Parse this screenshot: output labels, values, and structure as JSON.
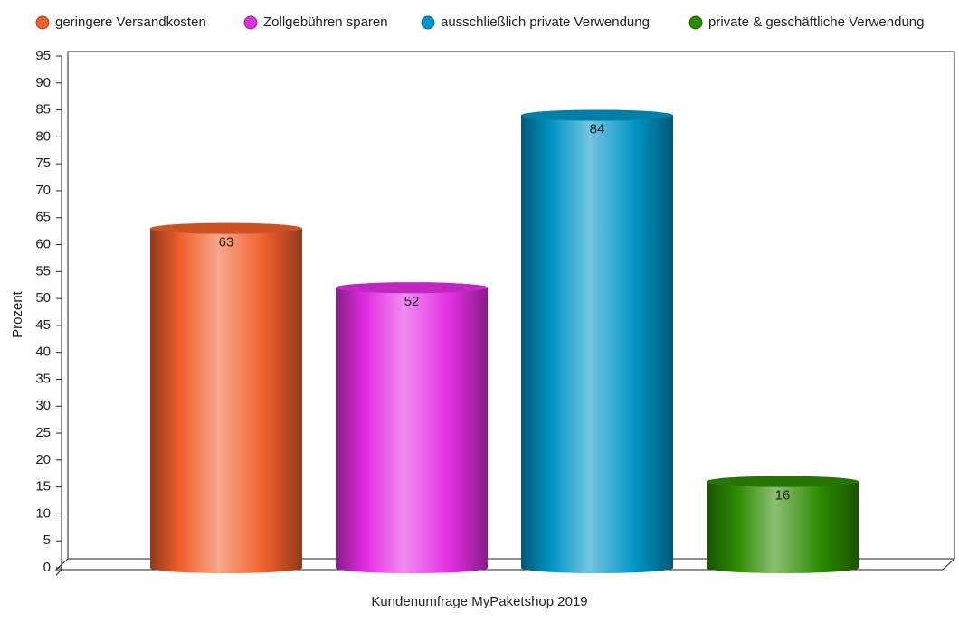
{
  "chart_data": {
    "type": "cylinder-bar",
    "x_label": "Kundenumfrage MyPaketshop 2019",
    "y_label": "Prozent",
    "series": [
      {
        "name": "geringere Versandkosten",
        "color": "#f0602c",
        "values": [
          63
        ]
      },
      {
        "name": "Zollgebühren sparen",
        "color": "#e22ee2",
        "values": [
          52
        ]
      },
      {
        "name": "ausschließlich private Verwendung",
        "color": "#0095c6",
        "values": [
          84
        ]
      },
      {
        "name": "private & geschäftliche Verwendung",
        "color": "#2c8a00",
        "values": [
          16
        ]
      }
    ],
    "ylim": [
      0,
      95
    ],
    "yticks": [
      0,
      5,
      10,
      15,
      20,
      25,
      30,
      35,
      40,
      45,
      50,
      55,
      60,
      65,
      70,
      75,
      80,
      85,
      90,
      95
    ],
    "grid": false
  }
}
